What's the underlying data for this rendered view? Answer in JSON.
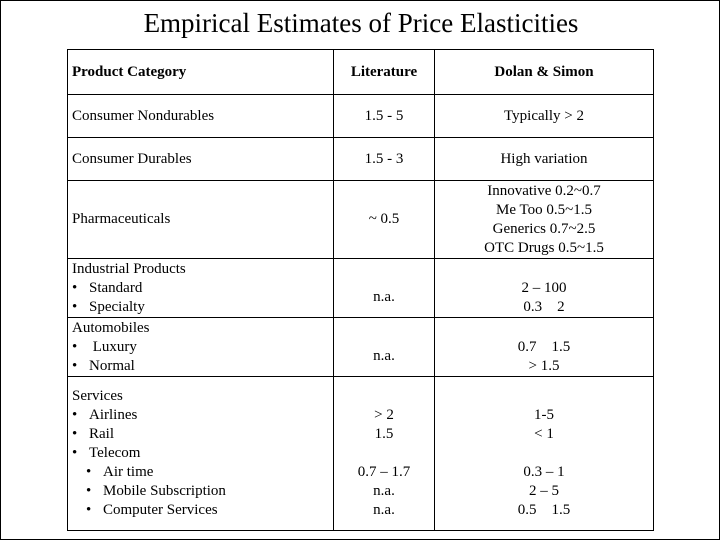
{
  "title": "Empirical Estimates of Price Elasticities",
  "headers": {
    "category": "Product Category",
    "literature": "Literature",
    "dolan_simon": "Dolan & Simon"
  },
  "rows": {
    "consumer_nondurables": {
      "category": "Consumer Nondurables",
      "literature": "1.5 - 5",
      "dolan_simon": "Typically > 2"
    },
    "consumer_durables": {
      "category": "Consumer Durables",
      "literature": "1.5 - 3",
      "dolan_simon": "High variation"
    },
    "pharmaceuticals": {
      "category": "Pharmaceuticals",
      "literature": "~ 0.5",
      "dolan_simon": [
        "Innovative 0.2~0.7",
        "Me Too 0.5~1.5",
        "Generics 0.7~2.5",
        "OTC Drugs 0.5~1.5"
      ]
    },
    "industrial_products": {
      "category": "Industrial Products",
      "items": [
        "Standard",
        "Specialty"
      ],
      "literature": "n.a.",
      "dolan_simon": [
        "2 – 100",
        "0.3    2"
      ]
    },
    "automobiles": {
      "category": "Automobiles",
      "items": [
        " Luxury",
        "Normal"
      ],
      "literature": "n.a.",
      "dolan_simon": [
        "0.7    1.5",
        "> 1.5"
      ]
    },
    "services": {
      "category": "Services",
      "items": [
        "Airlines",
        "Rail",
        "Telecom"
      ],
      "subitems": [
        "Air time",
        "Mobile Subscription",
        "Computer Services"
      ],
      "literature": [
        "> 2",
        "1.5",
        "0.7 – 1.7",
        "n.a.",
        "n.a."
      ],
      "dolan_simon": [
        "1-5",
        "< 1",
        "0.3 – 1",
        "2 – 5",
        "0.5    1.5"
      ]
    }
  },
  "bullet_glyph": "•"
}
